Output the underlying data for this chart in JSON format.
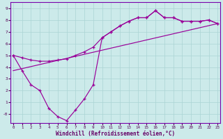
{
  "bg_color": "#cceaea",
  "line_color": "#990099",
  "grid_color": "#aad4d4",
  "xlim": [
    -0.3,
    23.3
  ],
  "ylim": [
    -0.75,
    9.5
  ],
  "xticks": [
    0,
    1,
    2,
    3,
    4,
    5,
    6,
    7,
    8,
    9,
    10,
    11,
    12,
    13,
    14,
    15,
    16,
    17,
    18,
    19,
    20,
    21,
    22,
    23
  ],
  "yticks": [
    0,
    1,
    2,
    3,
    4,
    5,
    6,
    7,
    8,
    9
  ],
  "xlabel": "Windchill (Refroidissement éolien,°C)",
  "line1_x": [
    0,
    1,
    2,
    3,
    4,
    5,
    6,
    7,
    8,
    9,
    10,
    11,
    12,
    13,
    14,
    15,
    16,
    17,
    18,
    19,
    20,
    21,
    22,
    23
  ],
  "line1_y": [
    5.0,
    3.7,
    2.5,
    2.0,
    0.5,
    -0.2,
    -0.55,
    0.35,
    1.3,
    2.5,
    6.5,
    7.0,
    7.5,
    7.9,
    8.2,
    8.2,
    8.8,
    8.2,
    8.2,
    7.9,
    7.9,
    7.9,
    8.0,
    7.7
  ],
  "line2_x": [
    0,
    1,
    2,
    3,
    4,
    5,
    6,
    7,
    8,
    9,
    10,
    11,
    12,
    13,
    14,
    15,
    16,
    17,
    18,
    19,
    20,
    21,
    22,
    23
  ],
  "line2_y": [
    5.0,
    4.8,
    4.6,
    4.5,
    4.5,
    4.6,
    4.7,
    5.0,
    5.3,
    5.7,
    6.5,
    7.0,
    7.5,
    7.9,
    8.2,
    8.2,
    8.8,
    8.2,
    8.2,
    7.9,
    7.9,
    7.9,
    8.0,
    7.7
  ],
  "line3_x": [
    0,
    23
  ],
  "line3_y": [
    3.7,
    7.7
  ]
}
